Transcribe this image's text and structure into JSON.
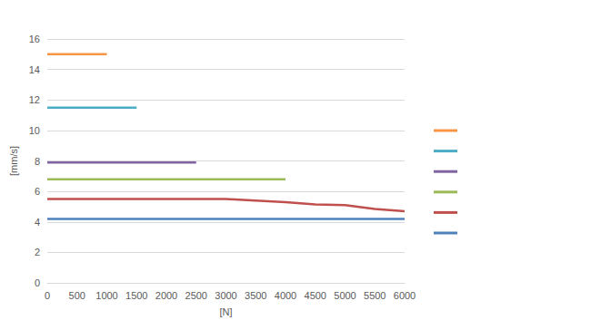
{
  "chart_data": {
    "type": "line",
    "x_label": "[N]",
    "y_label": "[mm/s]",
    "xlim": [
      0,
      6000
    ],
    "xticks": [
      0,
      500,
      1000,
      1500,
      2000,
      2500,
      3000,
      3500,
      4000,
      4500,
      5000,
      5500,
      6000
    ],
    "ylim": [
      0,
      16
    ],
    "yticks": [
      0,
      2,
      4,
      6,
      8,
      10,
      12,
      14,
      16
    ],
    "grid": true,
    "legend": "right",
    "series": [
      {
        "color": "#f79646",
        "x": [
          0,
          500,
          1000
        ],
        "values": [
          15,
          15,
          15
        ]
      },
      {
        "color": "#4bacc6",
        "x": [
          0,
          500,
          1000,
          1500
        ],
        "values": [
          11.5,
          11.5,
          11.5,
          11.5
        ]
      },
      {
        "color": "#8064a2",
        "x": [
          0,
          500,
          1000,
          1500,
          2000,
          2500
        ],
        "values": [
          7.9,
          7.9,
          7.9,
          7.9,
          7.9,
          7.9
        ]
      },
      {
        "color": "#9bbb59",
        "x": [
          0,
          500,
          1000,
          1500,
          2000,
          2500,
          3000,
          3500,
          4000
        ],
        "values": [
          6.8,
          6.8,
          6.8,
          6.8,
          6.8,
          6.8,
          6.8,
          6.8,
          6.8
        ]
      },
      {
        "color": "#c0504d",
        "x": [
          0,
          500,
          1000,
          1500,
          2000,
          2500,
          3000,
          3500,
          4000,
          4500,
          5000,
          5500,
          6000
        ],
        "values": [
          5.5,
          5.5,
          5.5,
          5.5,
          5.5,
          5.5,
          5.5,
          5.4,
          5.3,
          5.15,
          5.1,
          4.85,
          4.7
        ]
      },
      {
        "color": "#4f81bd",
        "x": [
          0,
          500,
          1000,
          1500,
          2000,
          2500,
          3000,
          3500,
          4000,
          4500,
          5000,
          5500,
          6000
        ],
        "values": [
          4.2,
          4.2,
          4.2,
          4.2,
          4.2,
          4.2,
          4.2,
          4.2,
          4.2,
          4.2,
          4.2,
          4.2,
          4.2
        ]
      }
    ]
  }
}
